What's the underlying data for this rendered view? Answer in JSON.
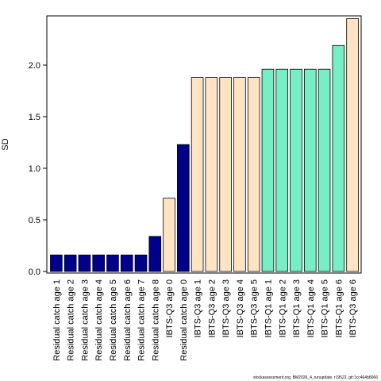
{
  "chart_data": {
    "type": "bar",
    "ylabel": "SD",
    "ylim": [
      0,
      2.45
    ],
    "yticks": [
      "0.0",
      "0.5",
      "1.0",
      "1.5",
      "2.0"
    ],
    "grid": false,
    "categories": [
      "Residual catch age 1",
      "Residual catch age 2",
      "Residual catch age 3",
      "Residual catch age 4",
      "Residual catch age 5",
      "Residual catch age 6",
      "Residual catch age 7",
      "Residual catch age 8",
      "IBTS-Q3 age 0",
      "Residual catch age 0",
      "IBTS-Q3 age 1",
      "IBTS-Q3 age 2",
      "IBTS-Q3 age 3",
      "IBTS-Q3 age 4",
      "IBTS-Q3 age 5",
      "IBTS-Q1 age 1",
      "IBTS-Q1 age 2",
      "IBTS-Q1 age 3",
      "IBTS-Q1 age 4",
      "IBTS-Q1 age 5",
      "IBTS-Q1 age 6",
      "IBTS-Q3 age 6"
    ],
    "values": [
      0.16,
      0.16,
      0.16,
      0.16,
      0.16,
      0.16,
      0.16,
      0.34,
      0.71,
      1.23,
      1.88,
      1.88,
      1.88,
      1.88,
      1.88,
      1.96,
      1.96,
      1.96,
      1.96,
      1.96,
      2.19,
      2.45
    ],
    "bar_colors": [
      "#00008b",
      "#00008b",
      "#00008b",
      "#00008b",
      "#00008b",
      "#00008b",
      "#00008b",
      "#00008b",
      "#ffe4c4",
      "#00008b",
      "#ffe4c4",
      "#ffe4c4",
      "#ffe4c4",
      "#ffe4c4",
      "#ffe4c4",
      "#76eec6",
      "#76eec6",
      "#76eec6",
      "#76eec6",
      "#76eec6",
      "#76eec6",
      "#ffe4c4"
    ]
  },
  "footer": "stockassessment.org, BM2026_4_runupdate, r19522, git:1cc464b8066"
}
